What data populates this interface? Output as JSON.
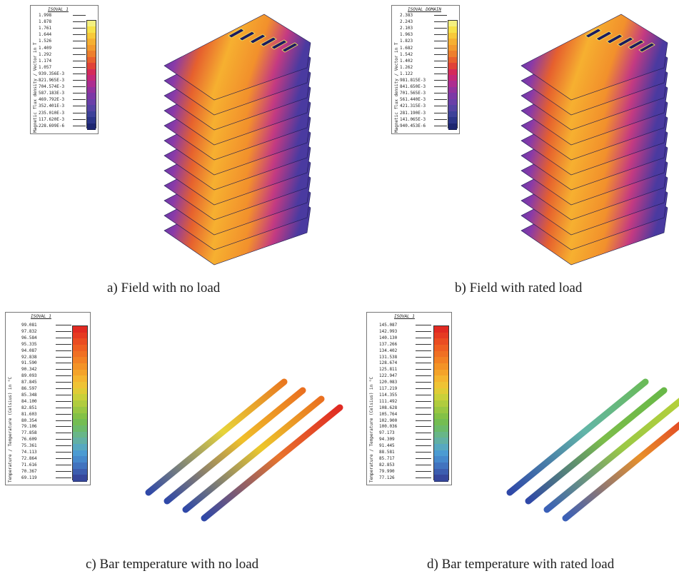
{
  "panels": [
    {
      "caption": "a) Field with no load",
      "legend": {
        "title": "ISOVAL_1",
        "quantity": "Magnetic flux density / Vector in T",
        "values": [
          "1.998",
          "1.878",
          "1.761",
          "1.644",
          "1.526",
          "1.409",
          "1.292",
          "1.174",
          "1.057",
          "939.356E-3",
          "821.965E-3",
          "704.574E-3",
          "587.183E-3",
          "469.792E-3",
          "352.401E-3",
          "235.010E-3",
          "117.620E-3",
          "228.699E-6"
        ],
        "colors": [
          "#f4f080",
          "#f7e24a",
          "#f8c93a",
          "#f5b032",
          "#f29a2e",
          "#ed7f2d",
          "#e8602e",
          "#e04238",
          "#d42a5a",
          "#c42878",
          "#ad2d90",
          "#93329d",
          "#7c38a6",
          "#6a3fa8",
          "#5443a3",
          "#3d4199",
          "#2b3488",
          "#1d2670"
        ]
      }
    },
    {
      "caption": "b) Field with rated load",
      "legend": {
        "title": "ISOVAL_DOMAIN",
        "quantity": "Magnetic flux density / Vector in T",
        "values": [
          "2.383",
          "2.243",
          "2.103",
          "1.963",
          "1.823",
          "1.682",
          "1.542",
          "1.402",
          "1.262",
          "1.122",
          "981.815E-3",
          "841.650E-3",
          "701.565E-3",
          "561.440E-3",
          "421.315E-3",
          "281.190E-3",
          "141.065E-3",
          "940.453E-6"
        ],
        "colors": [
          "#f4f080",
          "#f7e24a",
          "#f8c93a",
          "#f5b032",
          "#f29a2e",
          "#ed7f2d",
          "#e8602e",
          "#e04238",
          "#d42a5a",
          "#c42878",
          "#ad2d90",
          "#93329d",
          "#7c38a6",
          "#6a3fa8",
          "#5443a3",
          "#3d4199",
          "#2b3488",
          "#1d2670"
        ]
      }
    },
    {
      "caption": "c) Bar temperature with no load",
      "legend": {
        "title": "ISOVAL_1",
        "quantity": "Temperature / Temperature (Celsius) in °C",
        "values": [
          "99.081",
          "97.832",
          "96.584",
          "95.335",
          "94.087",
          "92.838",
          "91.590",
          "90.342",
          "89.093",
          "87.845",
          "86.597",
          "85.348",
          "84.100",
          "82.851",
          "81.603",
          "80.354",
          "79.106",
          "77.858",
          "76.609",
          "75.361",
          "74.113",
          "72.864",
          "71.616",
          "70.367",
          "69.119"
        ],
        "colors": [
          "#e12a22",
          "#e63b22",
          "#ea4d22",
          "#ee5f22",
          "#f07023",
          "#f28124",
          "#f39326",
          "#f4a32a",
          "#f4b530",
          "#efc335",
          "#e0cc36",
          "#c9d03a",
          "#b0cc3e",
          "#99c742",
          "#83c146",
          "#74bd52",
          "#6bba6a",
          "#68b688",
          "#62b0a4",
          "#57a8c0",
          "#4c9bd2",
          "#4689cc",
          "#4173bf",
          "#3c5daf",
          "#36479c"
        ],
        "bars": [
          {
            "from": "#2f48a8",
            "mid": "#e7d43a",
            "to": "#e9781f"
          },
          {
            "from": "#2f48a8",
            "mid": "#f0c02a",
            "to": "#ea7020"
          },
          {
            "from": "#2f48a8",
            "mid": "#ecc82c",
            "to": "#ea7020"
          },
          {
            "from": "#2f48a8",
            "mid": "#e8742c",
            "to": "#e02a22"
          }
        ]
      }
    },
    {
      "caption": "d) Bar temperature with rated load",
      "legend": {
        "title": "ISOVAL_1",
        "quantity": "Temperature / Temperature (Celsius) in °C",
        "values": [
          "145.087",
          "142.993",
          "140.130",
          "137.266",
          "134.402",
          "131.538",
          "128.674",
          "125.811",
          "122.947",
          "120.083",
          "117.219",
          "114.355",
          "111.492",
          "108.628",
          "105.764",
          "102.900",
          "100.036",
          "97.173",
          "94.309",
          "91.445",
          "88.581",
          "85.717",
          "82.853",
          "79.990",
          "77.126"
        ],
        "colors": [
          "#e12a22",
          "#e63b22",
          "#ea4d22",
          "#ee5f22",
          "#f07023",
          "#f28124",
          "#f39326",
          "#f4a32a",
          "#f4b530",
          "#efc335",
          "#e0cc36",
          "#c9d03a",
          "#b0cc3e",
          "#99c742",
          "#83c146",
          "#74bd52",
          "#6bba6a",
          "#68b688",
          "#62b0a4",
          "#57a8c0",
          "#4c9bd2",
          "#4689cc",
          "#4173bf",
          "#3c5daf",
          "#36479c"
        ],
        "bars": [
          {
            "from": "#2f48a8",
            "mid": "#62b5a8",
            "to": "#6abb58"
          },
          {
            "from": "#2f48a8",
            "mid": "#7cbd4a",
            "to": "#68b848"
          },
          {
            "from": "#3a60b8",
            "mid": "#9ac846",
            "to": "#b5d03a"
          },
          {
            "from": "#3a60b8",
            "mid": "#e8902a",
            "to": "#e02a22"
          }
        ]
      }
    }
  ]
}
